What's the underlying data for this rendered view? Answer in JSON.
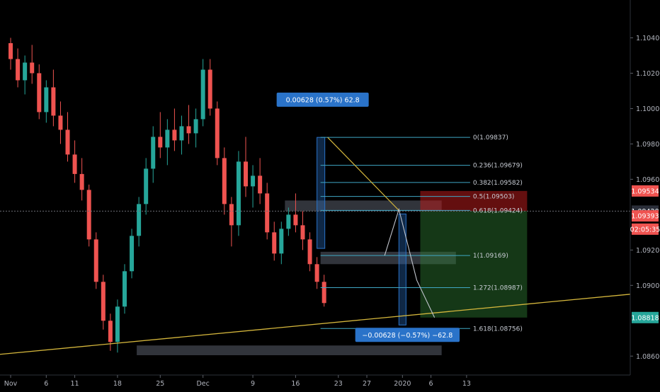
{
  "chart_data": {
    "type": "candlestick",
    "title": "",
    "xlabel": "",
    "ylabel": "",
    "ylim": [
      1.08493,
      1.10614
    ],
    "y_ticks": [
      "1.10400",
      "1.10200",
      "1.10000",
      "1.09800",
      "1.09600",
      "1.09200",
      "1.09000",
      "1.08600"
    ],
    "y_tick_values": [
      1.104,
      1.102,
      1.1,
      1.098,
      1.096,
      1.092,
      1.09,
      1.086
    ],
    "x_ticks": [
      "Nov",
      "6",
      "11",
      "18",
      "25",
      "Dec",
      "9",
      "16",
      "23",
      "27",
      "2020",
      "6",
      "13"
    ],
    "x_tick_bars": [
      0,
      5,
      9,
      15,
      21,
      27,
      34,
      40,
      46,
      50,
      55,
      59,
      64
    ],
    "bar_count": 65,
    "grid": false,
    "legend": "none",
    "colors": {
      "up": "#26a69a",
      "down": "#ef5350",
      "trendline": "#d4b63c",
      "fib": "#3fa7c4",
      "tp": "#2e7d32",
      "sl": "#b71c1c",
      "measure": "#2a73c9"
    },
    "candles": [
      [
        1.1037,
        1.104,
        1.1022,
        1.1028
      ],
      [
        1.1028,
        1.1034,
        1.1012,
        1.1016
      ],
      [
        1.1016,
        1.103,
        1.1008,
        1.1026
      ],
      [
        1.1026,
        1.1036,
        1.1014,
        1.102
      ],
      [
        1.102,
        1.1025,
        1.0994,
        1.0998
      ],
      [
        1.0998,
        1.1016,
        1.0992,
        1.1012
      ],
      [
        1.1012,
        1.1022,
        1.099,
        1.0996
      ],
      [
        1.0996,
        1.1004,
        1.098,
        1.0988
      ],
      [
        1.0988,
        1.0998,
        1.097,
        1.0974
      ],
      [
        1.0974,
        1.0982,
        1.0958,
        1.0963
      ],
      [
        1.0963,
        1.0972,
        1.0948,
        1.0954
      ],
      [
        1.0954,
        1.0957,
        1.0922,
        1.0926
      ],
      [
        1.0926,
        1.093,
        1.0898,
        1.0902
      ],
      [
        1.0902,
        1.0906,
        1.0875,
        1.088
      ],
      [
        1.088,
        1.0884,
        1.0863,
        1.0868
      ],
      [
        1.0868,
        1.0892,
        1.0862,
        1.0888
      ],
      [
        1.0888,
        1.0912,
        1.0884,
        1.0908
      ],
      [
        1.0908,
        1.0932,
        1.0904,
        1.0928
      ],
      [
        1.0928,
        1.095,
        1.0922,
        1.0946
      ],
      [
        1.0946,
        1.0972,
        1.094,
        1.0966
      ],
      [
        1.0966,
        1.099,
        1.0958,
        1.0984
      ],
      [
        1.0984,
        1.0998,
        1.0972,
        1.0978
      ],
      [
        1.0978,
        1.0994,
        1.0968,
        1.0988
      ],
      [
        1.0988,
        1.1,
        1.0976,
        1.0982
      ],
      [
        1.0982,
        1.0996,
        1.0974,
        1.099
      ],
      [
        1.099,
        1.1002,
        1.098,
        1.0986
      ],
      [
        1.0986,
        1.1,
        1.0978,
        1.0994
      ],
      [
        1.0994,
        1.1028,
        1.099,
        1.1022
      ],
      [
        1.1022,
        1.1028,
        1.0996,
        1.1
      ],
      [
        1.1,
        1.1004,
        1.0968,
        1.0972
      ],
      [
        1.0972,
        1.0978,
        1.094,
        1.0946
      ],
      [
        1.0946,
        1.095,
        1.0922,
        1.0934
      ],
      [
        1.0934,
        1.0976,
        1.0928,
        1.097
      ],
      [
        1.097,
        1.0984,
        1.095,
        1.0956
      ],
      [
        1.0956,
        1.0968,
        1.0944,
        1.0962
      ],
      [
        1.0962,
        1.0972,
        1.0946,
        1.0952
      ],
      [
        1.0952,
        1.0958,
        1.0926,
        1.093
      ],
      [
        1.093,
        1.0936,
        1.0914,
        1.0918
      ],
      [
        1.0918,
        1.0936,
        1.0912,
        1.0932
      ],
      [
        1.0932,
        1.0944,
        1.0928,
        1.094
      ],
      [
        1.094,
        1.0952,
        1.093,
        1.0934
      ],
      [
        1.0934,
        1.0942,
        1.092,
        1.0926
      ],
      [
        1.0926,
        1.093,
        1.0908,
        1.0912
      ],
      [
        1.0912,
        1.0916,
        1.0898,
        1.0902
      ],
      [
        1.0902,
        1.0906,
        1.0888,
        1.089
      ]
    ],
    "fib_levels": [
      {
        "label": "0(1.09837)",
        "value": 1.09837
      },
      {
        "label": "0.236(1.09679)",
        "value": 1.09679
      },
      {
        "label": "0.382(1.09582)",
        "value": 1.09582
      },
      {
        "label": "0.5(1.09503)",
        "value": 1.09503
      },
      {
        "label": "0.618(1.09424)",
        "value": 1.09424
      },
      {
        "label": "1(1.09169)",
        "value": 1.09169
      },
      {
        "label": "1.272(1.08987)",
        "value": 1.08987
      },
      {
        "label": "1.618(1.08756)",
        "value": 1.08756
      }
    ],
    "price_labels": [
      {
        "text": "1.09534",
        "value": 1.09534,
        "color": "#ef5350"
      },
      {
        "text": "1.09420",
        "value": 1.0942,
        "color": "#2a2e39"
      },
      {
        "text": "1.09393",
        "value": 1.09393,
        "color": "#ef5350"
      },
      {
        "text": "02:05:35",
        "value": 1.09318,
        "color": "#ef5350"
      },
      {
        "text": "1.08818",
        "value": 1.08818,
        "color": "#26a69a"
      }
    ],
    "measure_up": {
      "text": "0.00628 (0.57%) 62.8"
    },
    "measure_down": {
      "text": "−0.00628 (−0.57%) −62.8"
    },
    "crosshair_price": 1.0942
  }
}
